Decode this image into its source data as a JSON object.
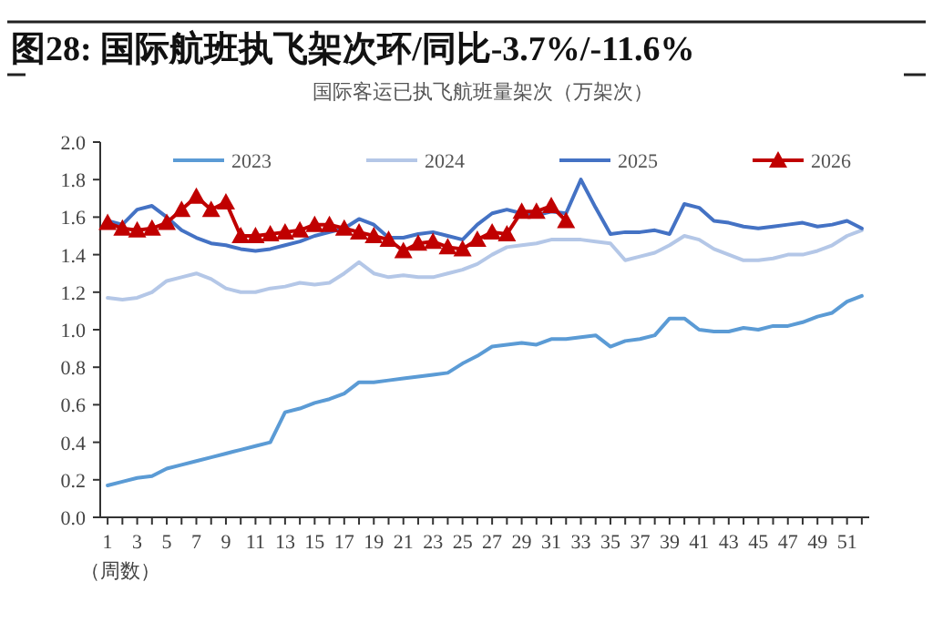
{
  "chart_data": {
    "type": "line",
    "title": "图28:  国际航班执飞架次环/同比-3.7%/-11.6%",
    "subtitle": "国际客运已执飞航班量架次（万架次）",
    "xlabel": "（周数）",
    "xlim": [
      0.5,
      52.5
    ],
    "xticks": [
      1,
      {
        "value": 2,
        "label": null
      },
      3,
      {
        "value": 4,
        "label": null
      },
      5,
      {
        "value": 6,
        "label": null
      },
      7,
      {
        "value": 8,
        "label": null
      },
      9,
      {
        "value": 10,
        "label": null
      },
      11,
      {
        "value": 12,
        "label": null
      },
      13,
      {
        "value": 14,
        "label": null
      },
      15,
      {
        "value": 16,
        "label": null
      },
      17,
      {
        "value": 18,
        "label": null
      },
      19,
      {
        "value": 20,
        "label": null
      },
      21,
      {
        "value": 22,
        "label": null
      },
      23,
      {
        "value": 24,
        "label": null
      },
      25,
      {
        "value": 26,
        "label": null
      },
      27,
      {
        "value": 28,
        "label": null
      },
      29,
      {
        "value": 30,
        "label": null
      },
      31,
      {
        "value": 32,
        "label": null
      },
      33,
      {
        "value": 34,
        "label": null
      },
      35,
      {
        "value": 36,
        "label": null
      },
      37,
      {
        "value": 38,
        "label": null
      },
      39,
      {
        "value": 40,
        "label": null
      },
      41,
      {
        "value": 42,
        "label": null
      },
      43,
      {
        "value": 44,
        "label": null
      },
      45,
      {
        "value": 46,
        "label": null
      },
      47,
      {
        "value": 48,
        "label": null
      },
      49,
      {
        "value": 50,
        "label": null
      },
      51,
      {
        "value": 52,
        "label": null
      }
    ],
    "ylim": [
      0,
      2.0
    ],
    "yticks": [
      {
        "value": 0,
        "label": "0.0"
      },
      0.2,
      0.4,
      0.6,
      0.8,
      {
        "value": 1,
        "label": "1.0"
      },
      1.2,
      1.4,
      1.6,
      1.8,
      {
        "value": 2,
        "label": "2.0"
      }
    ],
    "grid": false,
    "legend": "top",
    "line_style": "solid",
    "series": [
      {
        "name": "2023",
        "color": "#5b9bd5",
        "marker": "none",
        "x": [
          1,
          2,
          3,
          4,
          5,
          6,
          7,
          8,
          9,
          10,
          11,
          12,
          13,
          14,
          15,
          16,
          17,
          18,
          19,
          20,
          21,
          22,
          23,
          24,
          25,
          26,
          27,
          28,
          29,
          30,
          31,
          32,
          33,
          34,
          35,
          36,
          37,
          38,
          39,
          40,
          41,
          42,
          43,
          44,
          45,
          46,
          47,
          48,
          49,
          50,
          51,
          52
        ],
        "values": [
          0.17,
          0.19,
          0.21,
          0.22,
          0.26,
          0.28,
          0.3,
          0.32,
          0.34,
          0.36,
          0.38,
          0.4,
          0.56,
          0.58,
          0.61,
          0.63,
          0.66,
          0.72,
          0.72,
          0.73,
          0.74,
          0.75,
          0.76,
          0.77,
          0.82,
          0.86,
          0.91,
          0.92,
          0.93,
          0.92,
          0.95,
          0.95,
          0.96,
          0.97,
          0.91,
          0.94,
          0.95,
          0.97,
          1.06,
          1.06,
          1.0,
          0.99,
          0.99,
          1.01,
          1.0,
          1.02,
          1.02,
          1.04,
          1.07,
          1.09,
          1.15,
          1.18
        ]
      },
      {
        "name": "2024",
        "color": "#b4c7e7",
        "marker": "none",
        "x": [
          1,
          2,
          3,
          4,
          5,
          6,
          7,
          8,
          9,
          10,
          11,
          12,
          13,
          14,
          15,
          16,
          17,
          18,
          19,
          20,
          21,
          22,
          23,
          24,
          25,
          26,
          27,
          28,
          29,
          30,
          31,
          32,
          33,
          34,
          35,
          36,
          37,
          38,
          39,
          40,
          41,
          42,
          43,
          44,
          45,
          46,
          47,
          48,
          49,
          50,
          51,
          52
        ],
        "values": [
          1.17,
          1.16,
          1.17,
          1.2,
          1.26,
          1.28,
          1.3,
          1.27,
          1.22,
          1.2,
          1.2,
          1.22,
          1.23,
          1.25,
          1.24,
          1.25,
          1.3,
          1.36,
          1.3,
          1.28,
          1.29,
          1.28,
          1.28,
          1.3,
          1.32,
          1.35,
          1.4,
          1.44,
          1.45,
          1.46,
          1.48,
          1.48,
          1.48,
          1.47,
          1.46,
          1.37,
          1.39,
          1.41,
          1.45,
          1.5,
          1.48,
          1.43,
          1.4,
          1.37,
          1.37,
          1.38,
          1.4,
          1.4,
          1.42,
          1.45,
          1.5,
          1.53
        ]
      },
      {
        "name": "2025",
        "color": "#4472c4",
        "marker": "none",
        "x": [
          1,
          2,
          3,
          4,
          5,
          6,
          7,
          8,
          9,
          10,
          11,
          12,
          13,
          14,
          15,
          16,
          17,
          18,
          19,
          20,
          21,
          22,
          23,
          24,
          25,
          26,
          27,
          28,
          29,
          30,
          31,
          32,
          33,
          34,
          35,
          36,
          37,
          38,
          39,
          40,
          41,
          42,
          43,
          44,
          45,
          46,
          47,
          48,
          49,
          50,
          51,
          52
        ],
        "values": [
          1.58,
          1.56,
          1.64,
          1.66,
          1.6,
          1.53,
          1.49,
          1.46,
          1.45,
          1.43,
          1.42,
          1.43,
          1.45,
          1.47,
          1.5,
          1.52,
          1.54,
          1.59,
          1.56,
          1.49,
          1.49,
          1.51,
          1.52,
          1.5,
          1.48,
          1.56,
          1.62,
          1.64,
          1.62,
          1.61,
          1.63,
          1.62,
          1.8,
          1.65,
          1.51,
          1.52,
          1.52,
          1.53,
          1.51,
          1.67,
          1.65,
          1.58,
          1.57,
          1.55,
          1.54,
          1.55,
          1.56,
          1.57,
          1.55,
          1.56,
          1.58,
          1.54
        ]
      },
      {
        "name": "2026",
        "color": "#c00000",
        "marker": "triangle",
        "x": [
          1,
          2,
          3,
          4,
          5,
          6,
          7,
          8,
          9,
          10,
          11,
          12,
          13,
          14,
          15,
          16,
          17,
          18,
          19,
          20,
          21,
          22,
          23,
          24,
          25,
          26,
          27,
          28,
          29,
          30,
          31,
          32
        ],
        "values": [
          1.57,
          1.54,
          1.53,
          1.54,
          1.57,
          1.64,
          1.71,
          1.64,
          1.68,
          1.5,
          1.5,
          1.51,
          1.52,
          1.53,
          1.56,
          1.56,
          1.54,
          1.52,
          1.5,
          1.48,
          1.42,
          1.46,
          1.47,
          1.44,
          1.43,
          1.48,
          1.52,
          1.51,
          1.63,
          1.63,
          1.66,
          1.58
        ]
      }
    ]
  }
}
